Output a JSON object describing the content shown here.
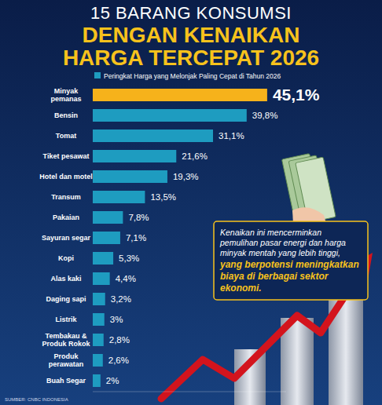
{
  "chart_data": {
    "type": "bar",
    "orientation": "horizontal",
    "title": "15 BARANG KONSUMSI",
    "subtitle": "DENGAN KENAIKAN HARGA TERCEPAT 2026",
    "categories": [
      "Minyak pemanas",
      "Bensin",
      "Tomat",
      "Tiket pesawat",
      "Hotel dan motel",
      "Transum",
      "Pakaian",
      "Sayuran segar",
      "Kopi",
      "Alas kaki",
      "Daging sapi",
      "Listrik",
      "Tembakau & Produk Rokok",
      "Produk perawatan",
      "Buah Segar"
    ],
    "series": [
      {
        "name": "Peringkat Harga yang Melonjak Paling Cepat di Tahun 2026",
        "color": "#1e9cc0",
        "colors": [
          "#f6b21b",
          "#1e9cc0",
          "#1e9cc0",
          "#1e9cc0",
          "#1e9cc0",
          "#1e9cc0",
          "#1e9cc0",
          "#1e9cc0",
          "#1e9cc0",
          "#1e9cc0",
          "#1e9cc0",
          "#1e9cc0",
          "#1e9cc0",
          "#1e9cc0",
          "#1e9cc0"
        ],
        "values": [
          45.1,
          39.8,
          31.1,
          21.6,
          19.3,
          13.5,
          7.8,
          7.1,
          5.3,
          4.4,
          3.2,
          3,
          2.8,
          2.6,
          2
        ],
        "value_labels": [
          "45,1%",
          "39,8%",
          "31,1%",
          "21,6%",
          "19,3%",
          "13,5%",
          "7,8%",
          "7,1%",
          "5,3%",
          "4,4%",
          "3,2%",
          "3%",
          "2,8%",
          "2,6%",
          "2%"
        ]
      }
    ],
    "xlim": [
      0,
      50
    ],
    "grid": false,
    "legend": "top",
    "data_labels": true,
    "tick_labels": "y",
    "annotations": [
      "Kenaikan ini mencerminkan pemulihan pasar energi dan harga minyak mentah yang lebih tinggi,",
      "yang berpotensi meningkatkan biaya di berbagai sektor ekonomi."
    ],
    "source": "SUMBER: CNBC INDONESIA"
  }
}
